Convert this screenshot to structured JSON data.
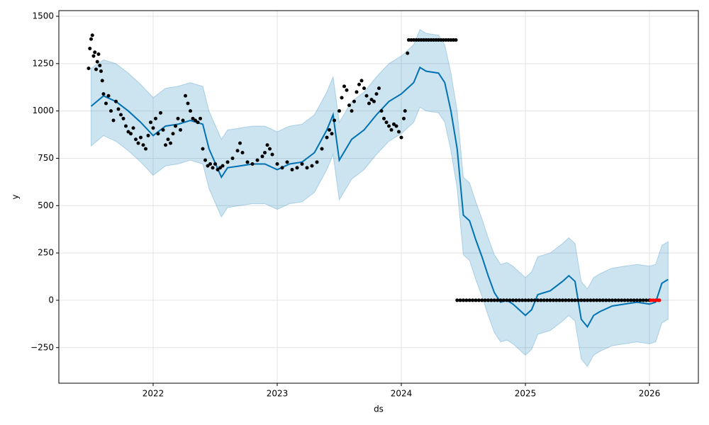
{
  "chart_data": {
    "type": "forecast",
    "xlabel": "ds",
    "ylabel": "y",
    "xlim": [
      2021.24,
      2026.394
    ],
    "ylim": [
      -438,
      1530
    ],
    "xticks": [
      2022,
      2023,
      2024,
      2025,
      2026
    ],
    "yticks": [
      {
        "value": -250,
        "label": "−250"
      },
      0,
      250,
      500,
      750,
      1000,
      1250,
      1500
    ],
    "grid": true,
    "forecast": {
      "color": "#0072B2",
      "band_color": "#0072B2",
      "x": [
        2021.5,
        2021.6,
        2021.7,
        2021.8,
        2021.9,
        2022.0,
        2022.1,
        2022.2,
        2022.3,
        2022.4,
        2022.45,
        2022.55,
        2022.6,
        2022.7,
        2022.8,
        2022.9,
        2023.0,
        2023.1,
        2023.2,
        2023.3,
        2023.4,
        2023.45,
        2023.5,
        2023.6,
        2023.7,
        2023.8,
        2023.9,
        2024.0,
        2024.1,
        2024.15,
        2024.2,
        2024.3,
        2024.35,
        2024.4,
        2024.45,
        2024.5,
        2024.55,
        2024.6,
        2024.65,
        2024.7,
        2024.75,
        2024.8,
        2024.85,
        2024.9,
        2025.0,
        2025.05,
        2025.1,
        2025.2,
        2025.3,
        2025.35,
        2025.4,
        2025.45,
        2025.5,
        2025.55,
        2025.6,
        2025.7,
        2025.8,
        2025.9,
        2026.0,
        2026.05,
        2026.1,
        2026.15
      ],
      "values": [
        1025,
        1080,
        1050,
        1000,
        940,
        870,
        920,
        930,
        950,
        930,
        800,
        650,
        700,
        710,
        720,
        720,
        690,
        720,
        730,
        780,
        900,
        980,
        740,
        850,
        900,
        980,
        1050,
        1090,
        1150,
        1230,
        1210,
        1200,
        1150,
        1000,
        800,
        450,
        420,
        320,
        230,
        130,
        40,
        -10,
        0,
        -20,
        -80,
        -50,
        30,
        50,
        100,
        130,
        100,
        -100,
        -140,
        -80,
        -60,
        -30,
        -20,
        -10,
        -20,
        -10,
        90,
        110
      ],
      "upper": [
        1225,
        1270,
        1250,
        1200,
        1140,
        1070,
        1120,
        1130,
        1150,
        1130,
        1000,
        850,
        900,
        910,
        920,
        920,
        890,
        920,
        930,
        980,
        1100,
        1180,
        940,
        1050,
        1100,
        1180,
        1250,
        1290,
        1350,
        1430,
        1410,
        1400,
        1350,
        1200,
        1000,
        650,
        620,
        520,
        430,
        330,
        240,
        190,
        200,
        180,
        120,
        150,
        230,
        250,
        300,
        330,
        300,
        100,
        60,
        120,
        140,
        170,
        180,
        190,
        180,
        190,
        290,
        310
      ],
      "lower": [
        815,
        870,
        840,
        790,
        730,
        660,
        710,
        720,
        740,
        720,
        590,
        440,
        490,
        500,
        510,
        510,
        480,
        510,
        520,
        570,
        690,
        770,
        530,
        640,
        690,
        770,
        840,
        880,
        940,
        1020,
        1000,
        990,
        940,
        790,
        590,
        240,
        210,
        110,
        20,
        -80,
        -170,
        -220,
        -210,
        -230,
        -290,
        -260,
        -180,
        -160,
        -110,
        -80,
        -110,
        -310,
        -350,
        -290,
        -270,
        -240,
        -230,
        -220,
        -230,
        -220,
        -120,
        -100
      ]
    },
    "observed": {
      "color": "#000000",
      "points": [
        [
          2021.48,
          1225
        ],
        [
          2021.49,
          1330
        ],
        [
          2021.5,
          1380
        ],
        [
          2021.51,
          1400
        ],
        [
          2021.52,
          1290
        ],
        [
          2021.53,
          1310
        ],
        [
          2021.54,
          1220
        ],
        [
          2021.55,
          1260
        ],
        [
          2021.56,
          1300
        ],
        [
          2021.57,
          1240
        ],
        [
          2021.58,
          1210
        ],
        [
          2021.59,
          1160
        ],
        [
          2021.6,
          1090
        ],
        [
          2021.62,
          1040
        ],
        [
          2021.64,
          1080
        ],
        [
          2021.66,
          1000
        ],
        [
          2021.68,
          950
        ],
        [
          2021.7,
          1050
        ],
        [
          2021.72,
          1010
        ],
        [
          2021.74,
          980
        ],
        [
          2021.76,
          960
        ],
        [
          2021.78,
          920
        ],
        [
          2021.8,
          890
        ],
        [
          2021.82,
          880
        ],
        [
          2021.84,
          910
        ],
        [
          2021.86,
          850
        ],
        [
          2021.88,
          830
        ],
        [
          2021.9,
          860
        ],
        [
          2021.92,
          820
        ],
        [
          2021.94,
          800
        ],
        [
          2021.96,
          870
        ],
        [
          2021.98,
          940
        ],
        [
          2022.0,
          910
        ],
        [
          2022.02,
          960
        ],
        [
          2022.04,
          880
        ],
        [
          2022.06,
          990
        ],
        [
          2022.08,
          900
        ],
        [
          2022.1,
          820
        ],
        [
          2022.12,
          850
        ],
        [
          2022.14,
          830
        ],
        [
          2022.16,
          880
        ],
        [
          2022.18,
          920
        ],
        [
          2022.2,
          960
        ],
        [
          2022.22,
          900
        ],
        [
          2022.24,
          950
        ],
        [
          2022.26,
          1080
        ],
        [
          2022.28,
          1040
        ],
        [
          2022.3,
          1000
        ],
        [
          2022.32,
          960
        ],
        [
          2022.34,
          950
        ],
        [
          2022.36,
          940
        ],
        [
          2022.38,
          960
        ],
        [
          2022.4,
          800
        ],
        [
          2022.42,
          740
        ],
        [
          2022.44,
          710
        ],
        [
          2022.46,
          720
        ],
        [
          2022.48,
          700
        ],
        [
          2022.5,
          720
        ],
        [
          2022.52,
          690
        ],
        [
          2022.54,
          700
        ],
        [
          2022.56,
          710
        ],
        [
          2022.6,
          730
        ],
        [
          2022.64,
          750
        ],
        [
          2022.68,
          790
        ],
        [
          2022.7,
          830
        ],
        [
          2022.72,
          780
        ],
        [
          2022.76,
          730
        ],
        [
          2022.8,
          720
        ],
        [
          2022.84,
          740
        ],
        [
          2022.88,
          760
        ],
        [
          2022.9,
          780
        ],
        [
          2022.92,
          820
        ],
        [
          2022.94,
          800
        ],
        [
          2022.96,
          770
        ],
        [
          2023.0,
          720
        ],
        [
          2023.04,
          700
        ],
        [
          2023.08,
          730
        ],
        [
          2023.12,
          690
        ],
        [
          2023.16,
          700
        ],
        [
          2023.2,
          720
        ],
        [
          2023.24,
          700
        ],
        [
          2023.28,
          710
        ],
        [
          2023.32,
          730
        ],
        [
          2023.36,
          800
        ],
        [
          2023.4,
          860
        ],
        [
          2023.42,
          900
        ],
        [
          2023.44,
          880
        ],
        [
          2023.46,
          950
        ],
        [
          2023.5,
          1000
        ],
        [
          2023.52,
          1070
        ],
        [
          2023.54,
          1130
        ],
        [
          2023.56,
          1110
        ],
        [
          2023.58,
          1030
        ],
        [
          2023.6,
          1000
        ],
        [
          2023.62,
          1050
        ],
        [
          2023.64,
          1100
        ],
        [
          2023.66,
          1140
        ],
        [
          2023.68,
          1160
        ],
        [
          2023.7,
          1120
        ],
        [
          2023.72,
          1080
        ],
        [
          2023.74,
          1040
        ],
        [
          2023.76,
          1060
        ],
        [
          2023.78,
          1050
        ],
        [
          2023.8,
          1090
        ],
        [
          2023.82,
          1120
        ],
        [
          2023.84,
          1000
        ],
        [
          2023.86,
          960
        ],
        [
          2023.88,
          940
        ],
        [
          2023.9,
          920
        ],
        [
          2023.92,
          900
        ],
        [
          2023.94,
          930
        ],
        [
          2023.96,
          920
        ],
        [
          2023.98,
          890
        ],
        [
          2024.0,
          860
        ],
        [
          2024.02,
          960
        ],
        [
          2024.03,
          1000
        ],
        [
          2024.05,
          1305
        ],
        [
          2024.06,
          1375
        ],
        [
          2024.08,
          1375
        ],
        [
          2024.1,
          1375
        ],
        [
          2024.12,
          1375
        ],
        [
          2024.14,
          1375
        ],
        [
          2024.16,
          1375
        ],
        [
          2024.18,
          1375
        ],
        [
          2024.2,
          1375
        ],
        [
          2024.22,
          1375
        ],
        [
          2024.24,
          1375
        ],
        [
          2024.26,
          1375
        ],
        [
          2024.28,
          1375
        ],
        [
          2024.3,
          1375
        ],
        [
          2024.32,
          1375
        ],
        [
          2024.34,
          1375
        ],
        [
          2024.36,
          1375
        ],
        [
          2024.38,
          1375
        ],
        [
          2024.4,
          1375
        ],
        [
          2024.42,
          1375
        ],
        [
          2024.44,
          1375
        ],
        [
          2024.45,
          0
        ],
        [
          2024.475,
          0
        ],
        [
          2024.5,
          0
        ],
        [
          2024.525,
          0
        ],
        [
          2024.55,
          0
        ],
        [
          2024.575,
          0
        ],
        [
          2024.6,
          0
        ],
        [
          2024.625,
          0
        ],
        [
          2024.65,
          0
        ],
        [
          2024.675,
          0
        ],
        [
          2024.7,
          0
        ],
        [
          2024.725,
          0
        ],
        [
          2024.75,
          0
        ],
        [
          2024.775,
          0
        ],
        [
          2024.8,
          0
        ],
        [
          2024.825,
          0
        ],
        [
          2024.85,
          0
        ],
        [
          2024.875,
          0
        ],
        [
          2024.9,
          0
        ],
        [
          2024.925,
          0
        ],
        [
          2024.95,
          0
        ],
        [
          2024.975,
          0
        ],
        [
          2025.0,
          0
        ],
        [
          2025.025,
          0
        ],
        [
          2025.05,
          0
        ],
        [
          2025.075,
          0
        ],
        [
          2025.1,
          0
        ],
        [
          2025.125,
          0
        ],
        [
          2025.15,
          0
        ],
        [
          2025.175,
          0
        ],
        [
          2025.2,
          0
        ],
        [
          2025.225,
          0
        ],
        [
          2025.25,
          0
        ],
        [
          2025.275,
          0
        ],
        [
          2025.3,
          0
        ],
        [
          2025.325,
          0
        ],
        [
          2025.35,
          0
        ],
        [
          2025.375,
          0
        ],
        [
          2025.4,
          0
        ],
        [
          2025.425,
          0
        ],
        [
          2025.45,
          0
        ],
        [
          2025.475,
          0
        ],
        [
          2025.5,
          0
        ],
        [
          2025.525,
          0
        ],
        [
          2025.55,
          0
        ],
        [
          2025.575,
          0
        ],
        [
          2025.6,
          0
        ],
        [
          2025.625,
          0
        ],
        [
          2025.65,
          0
        ],
        [
          2025.675,
          0
        ],
        [
          2025.7,
          0
        ],
        [
          2025.725,
          0
        ],
        [
          2025.75,
          0
        ],
        [
          2025.775,
          0
        ],
        [
          2025.8,
          0
        ],
        [
          2025.825,
          0
        ],
        [
          2025.85,
          0
        ],
        [
          2025.875,
          0
        ],
        [
          2025.9,
          0
        ],
        [
          2025.925,
          0
        ],
        [
          2025.95,
          0
        ],
        [
          2025.975,
          0
        ],
        [
          2026.0,
          0
        ]
      ]
    },
    "future_observed": {
      "color": "#ff0000",
      "points": [
        [
          2026.01,
          0
        ],
        [
          2026.03,
          0
        ],
        [
          2026.05,
          0
        ],
        [
          2026.07,
          0
        ],
        [
          2026.08,
          0
        ]
      ]
    }
  }
}
